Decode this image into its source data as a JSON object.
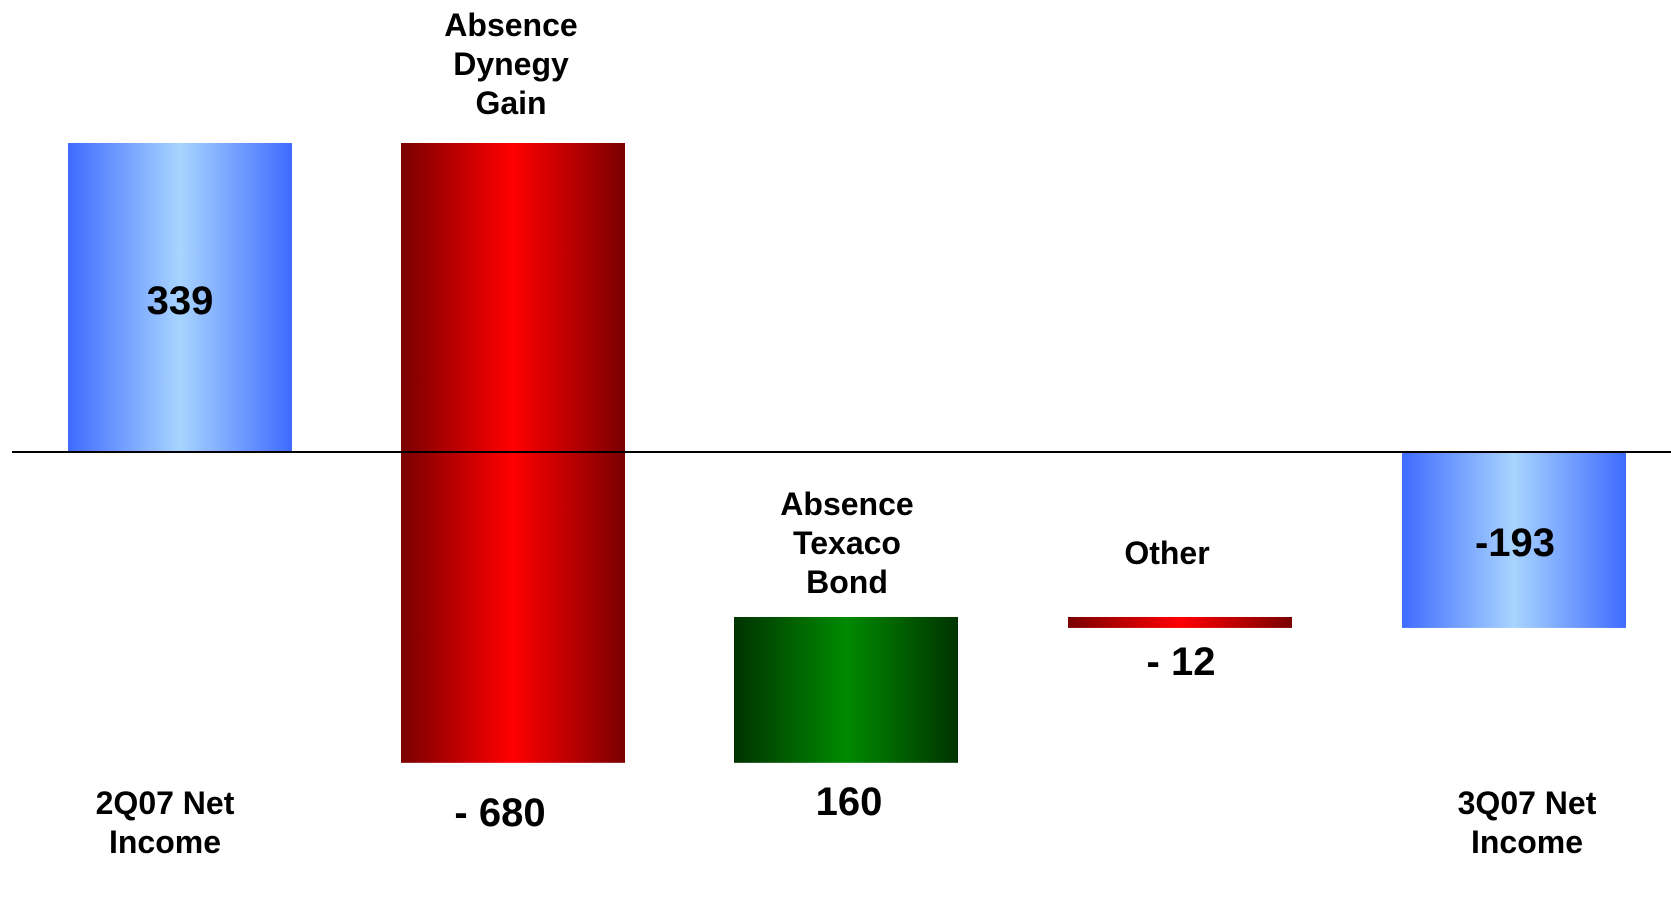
{
  "chart_data": {
    "type": "bar",
    "subtype": "waterfall",
    "categories": [
      [
        "2Q07 Net",
        "Income"
      ],
      [
        "Absence",
        "Dynegy",
        "Gain"
      ],
      [
        "Absence",
        "Texaco",
        "Bond"
      ],
      [
        "Other"
      ],
      [
        "3Q07 Net",
        "Income"
      ]
    ],
    "value_labels": [
      "339",
      "- 680",
      "160",
      "- 12",
      "-193"
    ],
    "values": [
      339,
      -680,
      160,
      -12,
      -193
    ],
    "bar_kinds": [
      "total",
      "decrease",
      "increase",
      "decrease",
      "total"
    ],
    "ylim": [
      -400,
      400
    ],
    "grid": false,
    "legend": false
  },
  "colors": {
    "total_edge": "#3f6bff",
    "total_center": "#a8d4ff",
    "decrease_edge": "#7a0000",
    "decrease_center": "#ff0000",
    "increase_edge": "#003300",
    "increase_center": "#008a00",
    "axis_line": "#000000"
  }
}
